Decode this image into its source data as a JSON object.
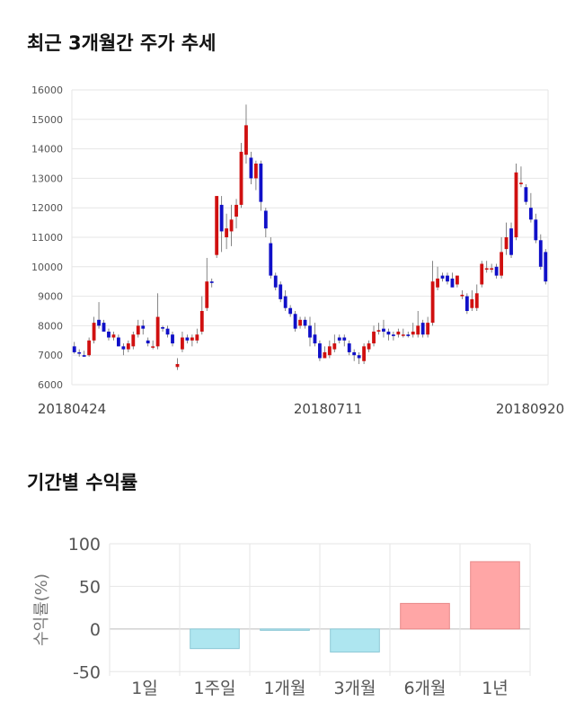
{
  "sections": {
    "stock_title": "최근 3개월간 주가 추세",
    "returns_title": "기간별 수익률"
  },
  "colors": {
    "up": "#d01010",
    "down": "#1010c8",
    "bar_positive": "#ffa6a6",
    "bar_negative": "#aee6f0"
  },
  "chart_data": [
    {
      "type": "candlestick",
      "title": "최근 3개월간 주가 추세",
      "ylim": [
        6000,
        16000
      ],
      "y_ticks": [
        "6000",
        "7000",
        "8000",
        "9000",
        "10000",
        "11000",
        "12000",
        "13000",
        "14000",
        "15000",
        "16000"
      ],
      "x_tick_labels": [
        "20180424",
        "20180711",
        "20180920"
      ],
      "grid": true,
      "ohlc": [
        [
          7300,
          7450,
          7050,
          7100
        ],
        [
          7100,
          7200,
          6950,
          7050
        ],
        [
          7000,
          7150,
          6950,
          6950
        ],
        [
          7000,
          7600,
          6950,
          7500
        ],
        [
          7500,
          8300,
          7400,
          8100
        ],
        [
          8200,
          8800,
          7900,
          8000
        ],
        [
          8100,
          8200,
          7800,
          7800
        ],
        [
          7800,
          7900,
          7500,
          7600
        ],
        [
          7600,
          7800,
          7500,
          7700
        ],
        [
          7600,
          7700,
          7300,
          7300
        ],
        [
          7300,
          7400,
          7000,
          7200
        ],
        [
          7200,
          7500,
          7100,
          7400
        ],
        [
          7300,
          7800,
          7200,
          7700
        ],
        [
          7700,
          8200,
          7600,
          8000
        ],
        [
          8000,
          8200,
          7700,
          7900
        ],
        [
          7500,
          7600,
          7300,
          7400
        ],
        [
          7300,
          7500,
          7200,
          7300
        ],
        [
          7300,
          9100,
          7200,
          8300
        ],
        [
          7950,
          8000,
          7800,
          7900
        ],
        [
          7900,
          8000,
          7600,
          7700
        ],
        [
          7700,
          7800,
          7300,
          7400
        ],
        [
          6600,
          6900,
          6500,
          6700
        ],
        [
          7200,
          7800,
          7100,
          7600
        ],
        [
          7600,
          7700,
          7400,
          7500
        ],
        [
          7500,
          7700,
          7300,
          7600
        ],
        [
          7500,
          7900,
          7400,
          7700
        ],
        [
          7800,
          9000,
          7700,
          8500
        ],
        [
          8600,
          10300,
          8500,
          9500
        ],
        [
          9500,
          9600,
          9300,
          9450
        ],
        [
          10400,
          12400,
          10300,
          12400
        ],
        [
          12100,
          12400,
          10500,
          11200
        ],
        [
          11000,
          11800,
          10600,
          11300
        ],
        [
          11200,
          12100,
          10700,
          11600
        ],
        [
          11700,
          12300,
          11300,
          12100
        ],
        [
          12100,
          14200,
          12000,
          13900
        ],
        [
          13800,
          15500,
          13500,
          14800
        ],
        [
          13700,
          13900,
          12800,
          13000
        ],
        [
          13000,
          13600,
          12600,
          13500
        ],
        [
          13500,
          13600,
          11900,
          12200
        ],
        [
          11900,
          12000,
          11000,
          11300
        ],
        [
          10800,
          11000,
          9600,
          9700
        ],
        [
          9700,
          9800,
          9200,
          9300
        ],
        [
          9400,
          9500,
          8800,
          8900
        ],
        [
          9000,
          9200,
          8500,
          8600
        ],
        [
          8600,
          8700,
          8300,
          8400
        ],
        [
          8400,
          8500,
          7800,
          7900
        ],
        [
          8000,
          8300,
          7900,
          8200
        ],
        [
          8200,
          8300,
          7900,
          8000
        ],
        [
          8000,
          8300,
          7300,
          7600
        ],
        [
          7700,
          8100,
          7300,
          7400
        ],
        [
          7400,
          7500,
          6800,
          6900
        ],
        [
          6900,
          7300,
          6900,
          7100
        ],
        [
          7000,
          7500,
          6900,
          7300
        ],
        [
          7200,
          7700,
          7100,
          7400
        ],
        [
          7600,
          7700,
          7400,
          7500
        ],
        [
          7600,
          7700,
          7300,
          7500
        ],
        [
          7400,
          7500,
          7000,
          7100
        ],
        [
          7100,
          7200,
          6800,
          7000
        ],
        [
          7000,
          7100,
          6700,
          6900
        ],
        [
          6800,
          7400,
          6700,
          7300
        ],
        [
          7200,
          7500,
          7100,
          7400
        ],
        [
          7400,
          8000,
          7300,
          7800
        ],
        [
          7800,
          8100,
          7700,
          7850
        ],
        [
          7900,
          8200,
          7600,
          7800
        ],
        [
          7800,
          7900,
          7500,
          7700
        ],
        [
          7700,
          7800,
          7500,
          7650
        ],
        [
          7700,
          7900,
          7600,
          7800
        ],
        [
          7700,
          7900,
          7600,
          7700
        ],
        [
          7700,
          7800,
          7600,
          7650
        ],
        [
          7700,
          8100,
          7600,
          7800
        ],
        [
          7700,
          8500,
          7600,
          8000
        ],
        [
          8100,
          8200,
          7600,
          7700
        ],
        [
          7700,
          8300,
          7600,
          8100
        ],
        [
          8100,
          10200,
          8000,
          9500
        ],
        [
          9300,
          10000,
          9200,
          9600
        ],
        [
          9700,
          9800,
          9500,
          9600
        ],
        [
          9700,
          9800,
          9400,
          9500
        ],
        [
          9600,
          9800,
          9400,
          9300
        ],
        [
          9400,
          9700,
          9300,
          9700
        ],
        [
          9000,
          9200,
          8900,
          9050
        ],
        [
          9000,
          9100,
          8400,
          8500
        ],
        [
          8600,
          9200,
          8500,
          8900
        ],
        [
          8600,
          9400,
          8500,
          9100
        ],
        [
          9400,
          10200,
          9300,
          10100
        ],
        [
          9900,
          10200,
          9800,
          9950
        ],
        [
          9900,
          10100,
          9800,
          9950
        ],
        [
          10000,
          10100,
          9600,
          9700
        ],
        [
          9700,
          11000,
          9600,
          10500
        ],
        [
          10600,
          11500,
          10400,
          11000
        ],
        [
          11300,
          11500,
          10300,
          10400
        ],
        [
          11000,
          13500,
          10900,
          13200
        ],
        [
          12800,
          13400,
          12700,
          12850
        ],
        [
          12700,
          12800,
          12100,
          12200
        ],
        [
          12000,
          12500,
          11500,
          11600
        ],
        [
          11600,
          11800,
          10800,
          10900
        ],
        [
          10900,
          11100,
          9900,
          10000
        ],
        [
          10500,
          10600,
          9400,
          9500
        ]
      ]
    },
    {
      "type": "bar",
      "title": "기간별 수익률",
      "ylabel": "수익률(%)",
      "categories": [
        "1일",
        "1주일",
        "1개월",
        "3개월",
        "6개월",
        "1년"
      ],
      "values": [
        0,
        -23,
        -1,
        -27,
        30,
        79
      ],
      "ylim": [
        -55,
        100
      ],
      "y_ticks": [
        "-50",
        "0",
        "50",
        "100"
      ],
      "grid": true
    }
  ]
}
